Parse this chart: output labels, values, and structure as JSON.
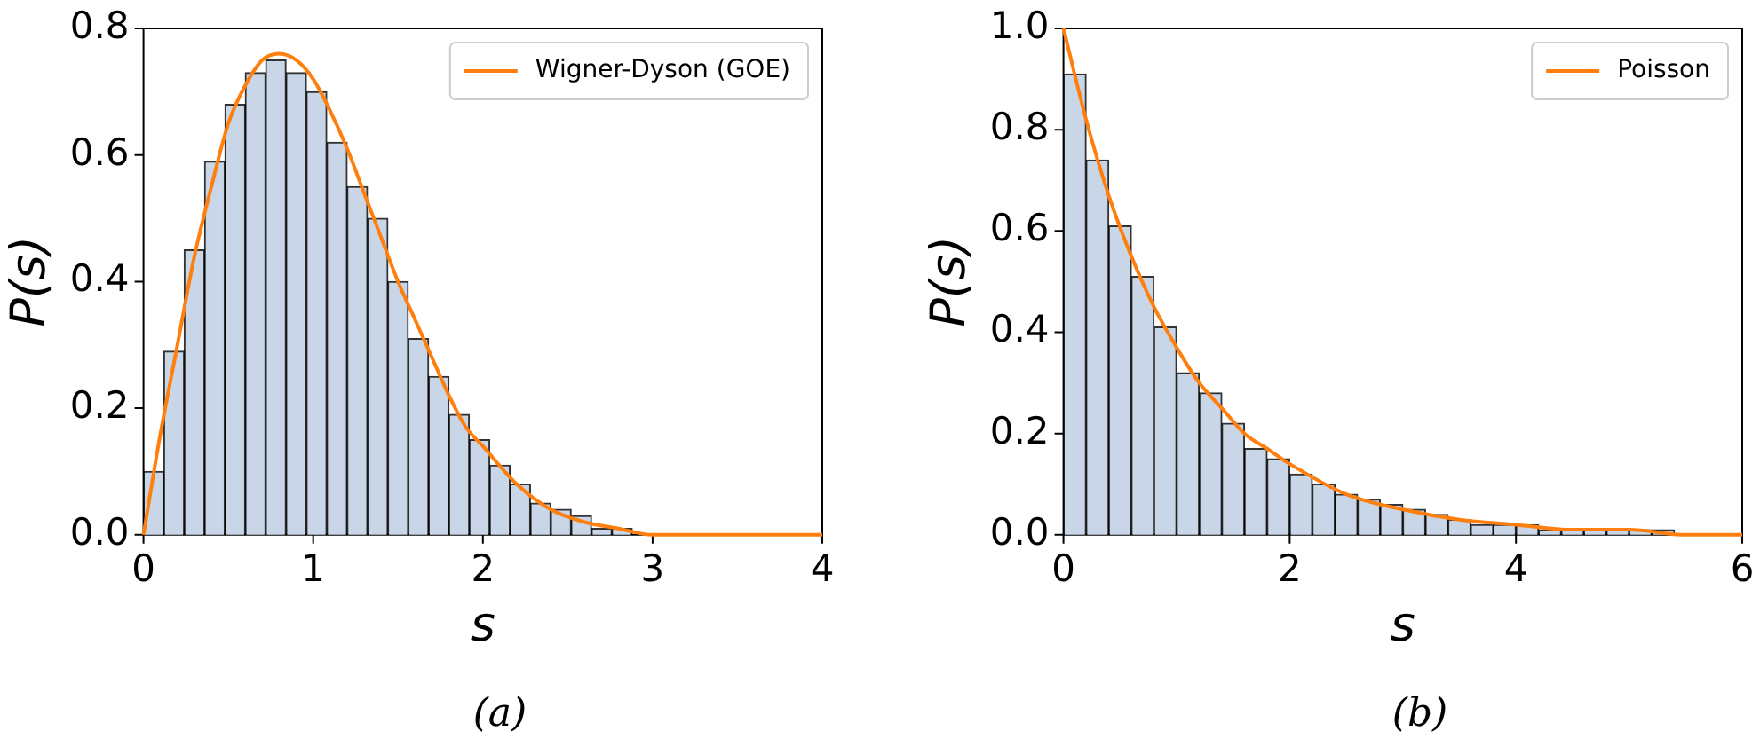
{
  "chart_data": [
    {
      "type": "histogram",
      "xlabel": "s",
      "ylabel": "P(s)",
      "annotations": [
        "(a)"
      ],
      "legend": "top right",
      "grid": false,
      "bins": [
        0,
        0.12,
        0.24,
        0.36,
        0.48,
        0.6,
        0.72,
        0.84,
        0.96,
        1.08,
        1.2,
        1.32,
        1.44,
        1.56,
        1.68,
        1.8,
        1.92,
        2.04,
        2.16,
        2.28,
        2.4,
        2.52,
        2.64,
        2.76,
        2.88
      ],
      "values": [
        0.1,
        0.29,
        0.45,
        0.59,
        0.68,
        0.73,
        0.75,
        0.73,
        0.7,
        0.62,
        0.55,
        0.5,
        0.4,
        0.31,
        0.25,
        0.19,
        0.15,
        0.11,
        0.08,
        0.05,
        0.04,
        0.03,
        0.01,
        0.01
      ],
      "color": "#c9d6e7",
      "series": [
        {
          "type": "line",
          "name": "Wigner-Dyson (GOE)",
          "color": "#ff7f0e",
          "x": [
            0,
            0.1,
            0.2,
            0.3,
            0.4,
            0.5,
            0.6,
            0.7,
            0.8,
            0.9,
            1.0,
            1.1,
            1.2,
            1.3,
            1.4,
            1.5,
            1.6,
            1.7,
            1.8,
            1.9,
            2.0,
            2.2,
            2.4,
            2.6,
            2.8,
            3.0,
            3.5,
            4.0
          ],
          "values": [
            0,
            0.16,
            0.3,
            0.44,
            0.55,
            0.65,
            0.71,
            0.75,
            0.76,
            0.75,
            0.72,
            0.67,
            0.61,
            0.54,
            0.47,
            0.4,
            0.34,
            0.28,
            0.22,
            0.17,
            0.14,
            0.08,
            0.04,
            0.02,
            0.01,
            0,
            0,
            0
          ]
        }
      ],
      "xlim": [
        0,
        4
      ],
      "xticks": [
        0,
        1,
        2,
        3,
        4
      ],
      "ylim": [
        0,
        0.8
      ],
      "yticks": [
        {
          "value": 0,
          "label": "0.0"
        },
        {
          "value": 0.2,
          "label": "0.2"
        },
        {
          "value": 0.4,
          "label": "0.4"
        },
        {
          "value": 0.6,
          "label": "0.6"
        },
        {
          "value": 0.8,
          "label": "0.8"
        }
      ]
    },
    {
      "type": "histogram",
      "xlabel": "s",
      "ylabel": "P(s)",
      "annotations": [
        "(b)"
      ],
      "legend": "top right",
      "grid": false,
      "bins": [
        0,
        0.2,
        0.4,
        0.6,
        0.8,
        1.0,
        1.2,
        1.4,
        1.6,
        1.8,
        2.0,
        2.2,
        2.4,
        2.6,
        2.8,
        3.0,
        3.2,
        3.4,
        3.6,
        3.8,
        4.0,
        4.2,
        4.4,
        4.6,
        4.8,
        5.0,
        5.2,
        5.4
      ],
      "values": [
        0.91,
        0.74,
        0.61,
        0.51,
        0.41,
        0.32,
        0.28,
        0.22,
        0.17,
        0.15,
        0.12,
        0.1,
        0.08,
        0.07,
        0.06,
        0.05,
        0.04,
        0.03,
        0.02,
        0.02,
        0.02,
        0.01,
        0.01,
        0.01,
        0.01,
        0.01,
        0.01
      ],
      "color": "#c9d6e7",
      "series": [
        {
          "type": "line",
          "name": "Poisson",
          "color": "#ff7f0e",
          "x": [
            0,
            0.2,
            0.4,
            0.6,
            0.8,
            1.0,
            1.2,
            1.4,
            1.6,
            1.8,
            2.0,
            2.5,
            3.0,
            3.5,
            4.0,
            4.5,
            5.0,
            5.5,
            6.0
          ],
          "values": [
            1.0,
            0.82,
            0.67,
            0.55,
            0.45,
            0.37,
            0.3,
            0.25,
            0.2,
            0.17,
            0.14,
            0.08,
            0.05,
            0.03,
            0.02,
            0.01,
            0.01,
            0,
            0
          ]
        }
      ],
      "xlim": [
        0,
        6
      ],
      "xticks": [
        0,
        2,
        4,
        6
      ],
      "ylim": [
        0,
        1.0
      ],
      "yticks": [
        {
          "value": 0,
          "label": "0.0"
        },
        {
          "value": 0.2,
          "label": "0.2"
        },
        {
          "value": 0.4,
          "label": "0.4"
        },
        {
          "value": 0.6,
          "label": "0.6"
        },
        {
          "value": 0.8,
          "label": "0.8"
        },
        {
          "value": 1.0,
          "label": "1.0"
        }
      ]
    }
  ]
}
